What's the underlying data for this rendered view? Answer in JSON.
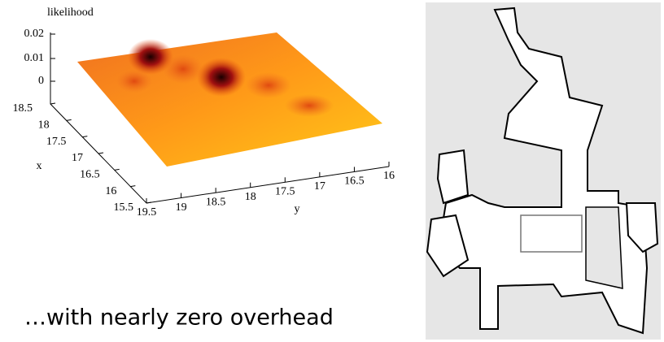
{
  "plot": {
    "z_label": "likelihood",
    "z_ticks": [
      "0.02",
      "0.01",
      "0"
    ],
    "x_label": "x",
    "x_ticks": [
      "18.5",
      "18",
      "17.5",
      "17",
      "16.5",
      "16",
      "15.5"
    ],
    "y_label": "y",
    "y_ticks": [
      "19.5",
      "19",
      "18.5",
      "18",
      "17.5",
      "17",
      "16.5",
      "16"
    ]
  },
  "caption": "…with nearly zero overhead"
}
